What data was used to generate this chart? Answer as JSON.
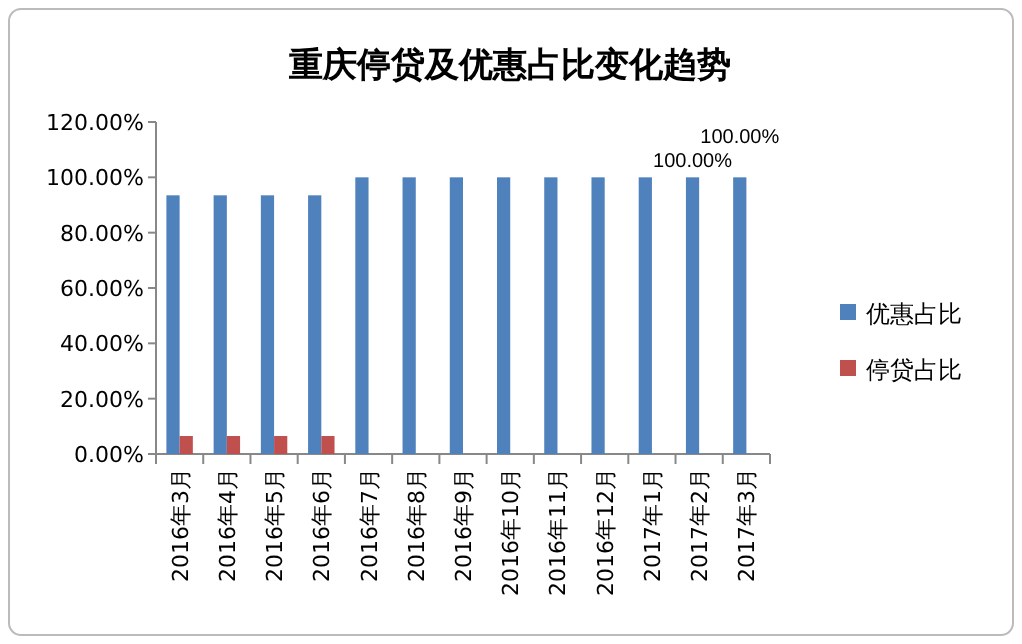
{
  "chart_data": {
    "type": "bar",
    "title": "重庆停贷及优惠占比变化趋势",
    "categories": [
      "2016年3月",
      "2016年4月",
      "2016年5月",
      "2016年6月",
      "2016年7月",
      "2016年8月",
      "2016年9月",
      "2016年10月",
      "2016年11月",
      "2016年12月",
      "2017年1月",
      "2017年2月",
      "2017年3月"
    ],
    "series": [
      {
        "name": "优惠占比",
        "color": "#4f81bd",
        "values": [
          93.5,
          93.5,
          93.5,
          93.5,
          100,
          100,
          100,
          100,
          100,
          100,
          100,
          100,
          100
        ],
        "value_labels": [
          null,
          null,
          null,
          null,
          null,
          null,
          null,
          null,
          null,
          null,
          null,
          "100.00%",
          "100.00%"
        ]
      },
      {
        "name": "停贷占比",
        "color": "#c0504d",
        "values": [
          6.5,
          6.5,
          6.5,
          6.5,
          0,
          0,
          0,
          0,
          0,
          0,
          0,
          0,
          0
        ]
      }
    ],
    "ylim": [
      0,
      120
    ],
    "yticks": [
      {
        "value": 0,
        "label": "0.00%"
      },
      {
        "value": 20,
        "label": "20.00%"
      },
      {
        "value": 40,
        "label": "40.00%"
      },
      {
        "value": 60,
        "label": "60.00%"
      },
      {
        "value": 80,
        "label": "80.00%"
      },
      {
        "value": 100,
        "label": "100.00%"
      },
      {
        "value": 120,
        "label": "120.00%"
      }
    ],
    "grid": false,
    "legend": "right"
  }
}
